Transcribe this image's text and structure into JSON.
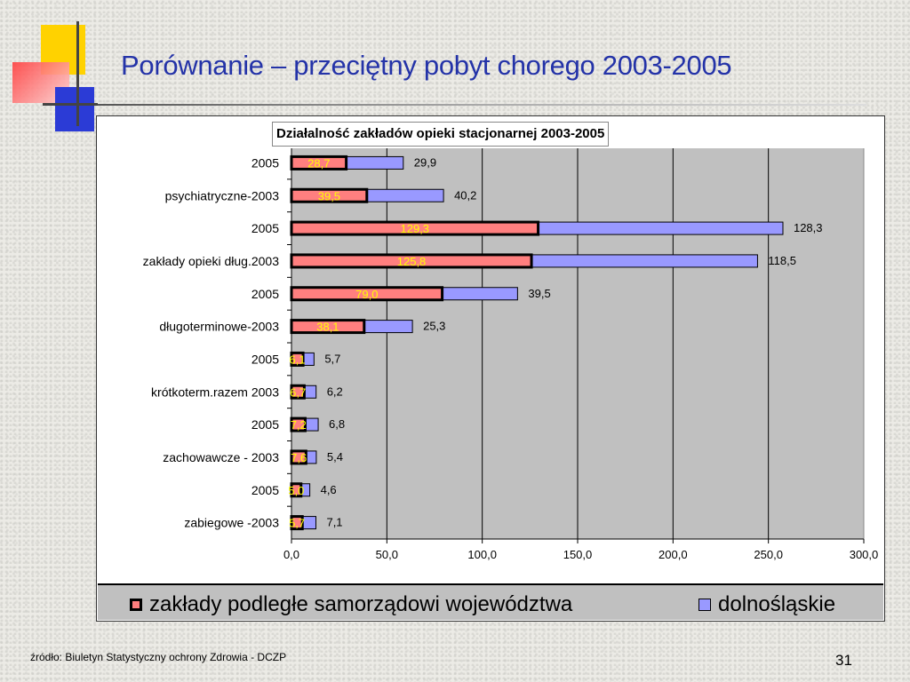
{
  "slide": {
    "title": "Porównanie – przeciętny pobyt chorego 2003-2005",
    "source": "źródło: Biuletyn Statystyczny ochrony Zdrowia - DCZP",
    "page_number": "31"
  },
  "colors": {
    "title": "#2433a8",
    "series_a": "#ff7f7f",
    "series_b": "#9999ff",
    "plot_bg": "#c0c0c0",
    "label_a": "#ffff00"
  },
  "chart_data": {
    "type": "bar",
    "orientation": "horizontal",
    "title": "Działalność zakładów opieki stacjonarnej 2003-2005",
    "categories": [
      "2005",
      "psychiatryczne-2003",
      "2005",
      "zakłady opieki dług.2003",
      "2005",
      "długoterminowe-2003",
      "2005",
      "krótkoterm.razem 2003",
      "2005",
      "zachowawcze - 2003",
      "2005",
      "zabiegowe -2003"
    ],
    "series": [
      {
        "name": "zakłady podległe samorządowi województwa",
        "values": [
          28.7,
          39.5,
          129.3,
          125.8,
          79.0,
          38.1,
          6.1,
          6.7,
          7.2,
          7.6,
          5.0,
          5.7
        ],
        "labels": [
          "28,7",
          "39,5",
          "129,3",
          "125,8",
          "79,0",
          "38,1",
          "6,1",
          "6,7",
          "7,2",
          "7,6",
          "5,0",
          "5,7"
        ]
      },
      {
        "name": "dolnośląskie",
        "values": [
          29.9,
          40.2,
          128.3,
          118.5,
          39.5,
          25.3,
          5.7,
          6.2,
          6.8,
          5.4,
          4.6,
          7.1
        ],
        "labels": [
          "29,9",
          "40,2",
          "128,3",
          "118,5",
          "39,5",
          "25,3",
          "5,7",
          "6,2",
          "6,8",
          "5,4",
          "4,6",
          "7,1"
        ]
      }
    ],
    "stacked": true,
    "xlim": [
      0,
      300
    ],
    "xticks": [
      "0,0",
      "50,0",
      "100,0",
      "150,0",
      "200,0",
      "250,0",
      "300,0"
    ],
    "grid": true,
    "legend_position": "bottom"
  }
}
